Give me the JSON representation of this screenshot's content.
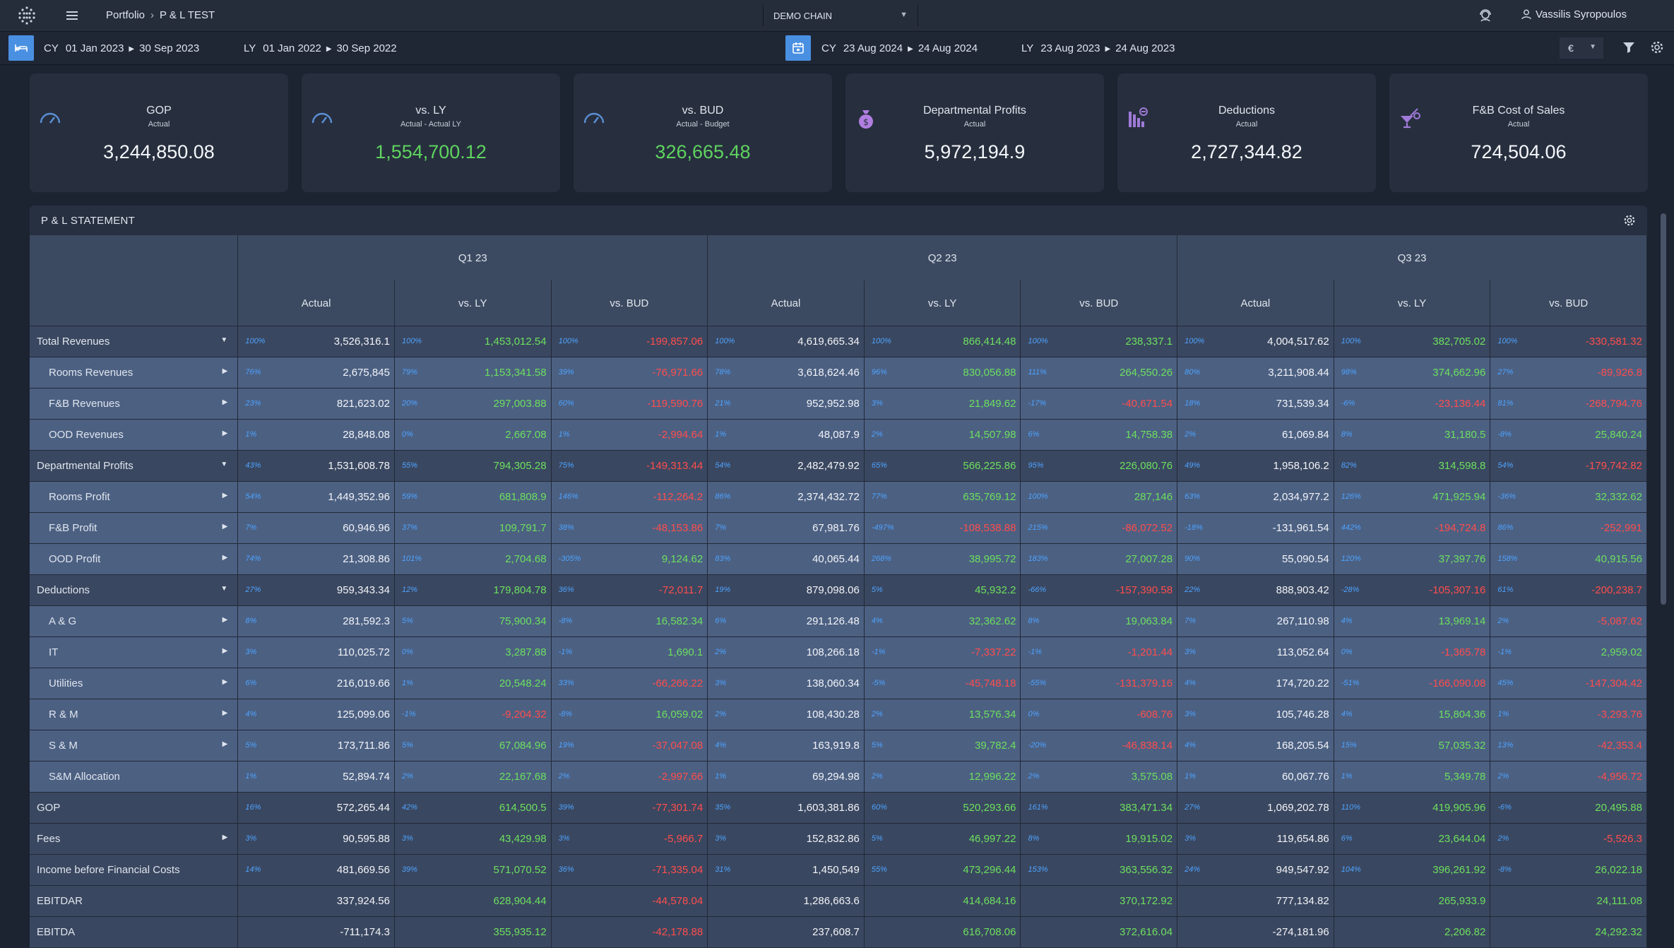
{
  "topbar": {
    "breadcrumb_root": "Portfolio",
    "breadcrumb_current": "P & L TEST",
    "chain": "DEMO CHAIN",
    "user": "Vassilis Syropoulos"
  },
  "datebar": {
    "left": {
      "cy_label": "CY",
      "cy_from": "01 Jan 2023",
      "cy_to": "30 Sep 2023",
      "ly_label": "LY",
      "ly_from": "01 Jan 2022",
      "ly_to": "30 Sep 2022"
    },
    "right": {
      "cy_label": "CY",
      "cy_from": "23 Aug 2024",
      "cy_to": "24 Aug 2024",
      "ly_label": "LY",
      "ly_from": "23 Aug 2023",
      "ly_to": "24 Aug 2023"
    },
    "currency": "€"
  },
  "kpis": [
    {
      "title": "GOP",
      "subtitle": "Actual",
      "value": "3,244,850.08",
      "positive": false,
      "icon": "gauge-icon"
    },
    {
      "title": "vs. LY",
      "subtitle": "Actual - Actual LY",
      "value": "1,554,700.12",
      "positive": true,
      "icon": "gauge-icon"
    },
    {
      "title": "vs. BUD",
      "subtitle": "Actual - Budget",
      "value": "326,665.48",
      "positive": true,
      "icon": "gauge-icon"
    },
    {
      "title": "Departmental Profits",
      "subtitle": "Actual",
      "value": "5,972,194.9",
      "positive": false,
      "icon": "money-bag-icon"
    },
    {
      "title": "Deductions",
      "subtitle": "Actual",
      "value": "2,727,344.82",
      "positive": false,
      "icon": "bar-chart-down-icon"
    },
    {
      "title": "F&B Cost of Sales",
      "subtitle": "Actual",
      "value": "724,504.06",
      "positive": false,
      "icon": "cocktail-icon"
    }
  ],
  "statement": {
    "title": "P & L STATEMENT",
    "quarters": [
      "Q1 23",
      "Q2 23",
      "Q3 23"
    ],
    "columns": [
      "Actual",
      "vs. LY",
      "vs. BUD"
    ],
    "rows": [
      {
        "label": "Total Revenues",
        "type": "main",
        "expander": "▼",
        "cells": [
          [
            "100%",
            "3,526,316.1",
            ""
          ],
          [
            "100%",
            "1,453,012.54",
            "pos"
          ],
          [
            "100%",
            "-199,857.06",
            "neg"
          ],
          [
            "100%",
            "4,619,665.34",
            ""
          ],
          [
            "100%",
            "866,414.48",
            "pos"
          ],
          [
            "100%",
            "238,337.1",
            "pos"
          ],
          [
            "100%",
            "4,004,517.62",
            ""
          ],
          [
            "100%",
            "382,705.02",
            "pos"
          ],
          [
            "100%",
            "-330,581.32",
            "neg"
          ]
        ]
      },
      {
        "label": "Rooms Revenues",
        "type": "sub",
        "expander": "▶",
        "cells": [
          [
            "76%",
            "2,675,845",
            ""
          ],
          [
            "79%",
            "1,153,341.58",
            "pos"
          ],
          [
            "39%",
            "-76,971.66",
            "neg"
          ],
          [
            "78%",
            "3,618,624.46",
            ""
          ],
          [
            "96%",
            "830,056.88",
            "pos"
          ],
          [
            "111%",
            "264,550.26",
            "pos"
          ],
          [
            "80%",
            "3,211,908.44",
            ""
          ],
          [
            "98%",
            "374,662.96",
            "pos"
          ],
          [
            "27%",
            "-89,926.8",
            "neg"
          ]
        ]
      },
      {
        "label": "F&B Revenues",
        "type": "sub",
        "expander": "▶",
        "cells": [
          [
            "23%",
            "821,623.02",
            ""
          ],
          [
            "20%",
            "297,003.88",
            "pos"
          ],
          [
            "60%",
            "-119,590.76",
            "neg"
          ],
          [
            "21%",
            "952,952.98",
            ""
          ],
          [
            "3%",
            "21,849.62",
            "pos"
          ],
          [
            "-17%",
            "-40,671.54",
            "neg"
          ],
          [
            "18%",
            "731,539.34",
            ""
          ],
          [
            "-6%",
            "-23,136.44",
            "neg"
          ],
          [
            "81%",
            "-268,794.76",
            "neg"
          ]
        ]
      },
      {
        "label": "OOD Revenues",
        "type": "sub",
        "expander": "▶",
        "cells": [
          [
            "1%",
            "28,848.08",
            ""
          ],
          [
            "0%",
            "2,667.08",
            "pos"
          ],
          [
            "1%",
            "-2,994.64",
            "neg"
          ],
          [
            "1%",
            "48,087.9",
            ""
          ],
          [
            "2%",
            "14,507.98",
            "pos"
          ],
          [
            "6%",
            "14,758.38",
            "pos"
          ],
          [
            "2%",
            "61,069.84",
            ""
          ],
          [
            "8%",
            "31,180.5",
            "pos"
          ],
          [
            "-8%",
            "25,840.24",
            "pos"
          ]
        ]
      },
      {
        "label": "Departmental Profits",
        "type": "main",
        "expander": "▼",
        "cells": [
          [
            "43%",
            "1,531,608.78",
            ""
          ],
          [
            "55%",
            "794,305.28",
            "pos"
          ],
          [
            "75%",
            "-149,313.44",
            "neg"
          ],
          [
            "54%",
            "2,482,479.92",
            ""
          ],
          [
            "65%",
            "566,225.86",
            "pos"
          ],
          [
            "95%",
            "226,080.76",
            "pos"
          ],
          [
            "49%",
            "1,958,106.2",
            ""
          ],
          [
            "82%",
            "314,598.8",
            "pos"
          ],
          [
            "54%",
            "-179,742.82",
            "neg"
          ]
        ]
      },
      {
        "label": "Rooms Profit",
        "type": "sub",
        "expander": "▶",
        "cells": [
          [
            "54%",
            "1,449,352.96",
            ""
          ],
          [
            "59%",
            "681,808.9",
            "pos"
          ],
          [
            "146%",
            "-112,264.2",
            "neg"
          ],
          [
            "86%",
            "2,374,432.72",
            ""
          ],
          [
            "77%",
            "635,769.12",
            "pos"
          ],
          [
            "100%",
            "287,146",
            "pos"
          ],
          [
            "63%",
            "2,034,977.2",
            ""
          ],
          [
            "126%",
            "471,925.94",
            "pos"
          ],
          [
            "-36%",
            "32,332.62",
            "pos"
          ]
        ]
      },
      {
        "label": "F&B Profit",
        "type": "sub",
        "expander": "▶",
        "cells": [
          [
            "7%",
            "60,946.96",
            ""
          ],
          [
            "37%",
            "109,791.7",
            "pos"
          ],
          [
            "38%",
            "-48,153.86",
            "neg"
          ],
          [
            "7%",
            "67,981.76",
            ""
          ],
          [
            "-497%",
            "-108,538.88",
            "neg"
          ],
          [
            "215%",
            "-86,072.52",
            "neg"
          ],
          [
            "-18%",
            "-131,961.54",
            ""
          ],
          [
            "442%",
            "-194,724.8",
            "neg"
          ],
          [
            "86%",
            "-252,991",
            "neg"
          ]
        ]
      },
      {
        "label": "OOD Profit",
        "type": "sub",
        "expander": "▶",
        "cells": [
          [
            "74%",
            "21,308.86",
            ""
          ],
          [
            "101%",
            "2,704.68",
            "pos"
          ],
          [
            "-305%",
            "9,124.62",
            "pos"
          ],
          [
            "83%",
            "40,065.44",
            ""
          ],
          [
            "268%",
            "38,995.72",
            "pos"
          ],
          [
            "183%",
            "27,007.28",
            "pos"
          ],
          [
            "90%",
            "55,090.54",
            ""
          ],
          [
            "120%",
            "37,397.76",
            "pos"
          ],
          [
            "158%",
            "40,915.56",
            "pos"
          ]
        ]
      },
      {
        "label": "Deductions",
        "type": "main",
        "expander": "▼",
        "cells": [
          [
            "27%",
            "959,343.34",
            ""
          ],
          [
            "12%",
            "179,804.78",
            "pos"
          ],
          [
            "36%",
            "-72,011.7",
            "neg"
          ],
          [
            "19%",
            "879,098.06",
            ""
          ],
          [
            "5%",
            "45,932.2",
            "pos"
          ],
          [
            "-66%",
            "-157,390.58",
            "neg"
          ],
          [
            "22%",
            "888,903.42",
            ""
          ],
          [
            "-28%",
            "-105,307.16",
            "neg"
          ],
          [
            "61%",
            "-200,238.7",
            "neg"
          ]
        ]
      },
      {
        "label": "A & G",
        "type": "sub",
        "expander": "▶",
        "cells": [
          [
            "8%",
            "281,592.3",
            ""
          ],
          [
            "5%",
            "75,900.34",
            "pos"
          ],
          [
            "-8%",
            "16,582.34",
            "pos"
          ],
          [
            "6%",
            "291,126.48",
            ""
          ],
          [
            "4%",
            "32,362.62",
            "pos"
          ],
          [
            "8%",
            "19,063.84",
            "pos"
          ],
          [
            "7%",
            "267,110.98",
            ""
          ],
          [
            "4%",
            "13,969.14",
            "pos"
          ],
          [
            "2%",
            "-5,087.62",
            "neg"
          ]
        ]
      },
      {
        "label": "IT",
        "type": "sub",
        "expander": "▶",
        "cells": [
          [
            "3%",
            "110,025.72",
            ""
          ],
          [
            "0%",
            "3,287.88",
            "pos"
          ],
          [
            "-1%",
            "1,690.1",
            "pos"
          ],
          [
            "2%",
            "108,266.18",
            ""
          ],
          [
            "-1%",
            "-7,337.22",
            "neg"
          ],
          [
            "-1%",
            "-1,201.44",
            "neg"
          ],
          [
            "3%",
            "113,052.64",
            ""
          ],
          [
            "0%",
            "-1,365.78",
            "neg"
          ],
          [
            "-1%",
            "2,959.02",
            "pos"
          ]
        ]
      },
      {
        "label": "Utilities",
        "type": "sub",
        "expander": "▶",
        "cells": [
          [
            "6%",
            "216,019.66",
            ""
          ],
          [
            "1%",
            "20,548.24",
            "pos"
          ],
          [
            "33%",
            "-66,266.22",
            "neg"
          ],
          [
            "3%",
            "138,060.34",
            ""
          ],
          [
            "-5%",
            "-45,748.18",
            "neg"
          ],
          [
            "-55%",
            "-131,379.16",
            "neg"
          ],
          [
            "4%",
            "174,720.22",
            ""
          ],
          [
            "-51%",
            "-166,090.08",
            "neg"
          ],
          [
            "45%",
            "-147,304.42",
            "neg"
          ]
        ]
      },
      {
        "label": "R & M",
        "type": "sub",
        "expander": "▶",
        "cells": [
          [
            "4%",
            "125,099.06",
            ""
          ],
          [
            "-1%",
            "-9,204.32",
            "neg"
          ],
          [
            "-8%",
            "16,059.02",
            "pos"
          ],
          [
            "2%",
            "108,430.28",
            ""
          ],
          [
            "2%",
            "13,576.34",
            "pos"
          ],
          [
            "0%",
            "-608.76",
            "neg"
          ],
          [
            "3%",
            "105,746.28",
            ""
          ],
          [
            "4%",
            "15,804.36",
            "pos"
          ],
          [
            "1%",
            "-3,293.76",
            "neg"
          ]
        ]
      },
      {
        "label": "S & M",
        "type": "sub",
        "expander": "▶",
        "cells": [
          [
            "5%",
            "173,711.86",
            ""
          ],
          [
            "5%",
            "67,084.96",
            "pos"
          ],
          [
            "19%",
            "-37,047.08",
            "neg"
          ],
          [
            "4%",
            "163,919.8",
            ""
          ],
          [
            "5%",
            "39,782.4",
            "pos"
          ],
          [
            "-20%",
            "-46,838.14",
            "neg"
          ],
          [
            "4%",
            "168,205.54",
            ""
          ],
          [
            "15%",
            "57,035.32",
            "pos"
          ],
          [
            "13%",
            "-42,353.4",
            "neg"
          ]
        ]
      },
      {
        "label": "S&M Allocation",
        "type": "sub",
        "expander": "",
        "cells": [
          [
            "1%",
            "52,894.74",
            ""
          ],
          [
            "2%",
            "22,167.68",
            "pos"
          ],
          [
            "2%",
            "-2,997.66",
            "neg"
          ],
          [
            "1%",
            "69,294.98",
            ""
          ],
          [
            "2%",
            "12,996.22",
            "pos"
          ],
          [
            "2%",
            "3,575.08",
            "pos"
          ],
          [
            "1%",
            "60,067.76",
            ""
          ],
          [
            "1%",
            "5,349.78",
            "pos"
          ],
          [
            "2%",
            "-4,956.72",
            "neg"
          ]
        ]
      },
      {
        "label": "GOP",
        "type": "plain",
        "expander": "",
        "cells": [
          [
            "16%",
            "572,265.44",
            ""
          ],
          [
            "42%",
            "614,500.5",
            "pos"
          ],
          [
            "39%",
            "-77,301.74",
            "neg"
          ],
          [
            "35%",
            "1,603,381.86",
            ""
          ],
          [
            "60%",
            "520,293.66",
            "pos"
          ],
          [
            "161%",
            "383,471.34",
            "pos"
          ],
          [
            "27%",
            "1,069,202.78",
            ""
          ],
          [
            "110%",
            "419,905.96",
            "pos"
          ],
          [
            "-6%",
            "20,495.88",
            "pos"
          ]
        ]
      },
      {
        "label": "Fees",
        "type": "plain",
        "expander": "▶",
        "cells": [
          [
            "3%",
            "90,595.88",
            ""
          ],
          [
            "3%",
            "43,429.98",
            "pos"
          ],
          [
            "3%",
            "-5,966.7",
            "neg"
          ],
          [
            "3%",
            "152,832.86",
            ""
          ],
          [
            "5%",
            "46,997.22",
            "pos"
          ],
          [
            "8%",
            "19,915.02",
            "pos"
          ],
          [
            "3%",
            "119,654.86",
            ""
          ],
          [
            "6%",
            "23,644.04",
            "pos"
          ],
          [
            "2%",
            "-5,526.3",
            "neg"
          ]
        ]
      },
      {
        "label": "Income before Financial Costs",
        "type": "plain",
        "expander": "",
        "cells": [
          [
            "14%",
            "481,669.56",
            ""
          ],
          [
            "39%",
            "571,070.52",
            "pos"
          ],
          [
            "36%",
            "-71,335.04",
            "neg"
          ],
          [
            "31%",
            "1,450,549",
            ""
          ],
          [
            "55%",
            "473,296.44",
            "pos"
          ],
          [
            "153%",
            "363,556.32",
            "pos"
          ],
          [
            "24%",
            "949,547.92",
            ""
          ],
          [
            "104%",
            "396,261.92",
            "pos"
          ],
          [
            "-8%",
            "26,022.18",
            "pos"
          ]
        ]
      },
      {
        "label": "EBITDAR",
        "type": "plain",
        "expander": "",
        "cells": [
          [
            "",
            "337,924.56",
            ""
          ],
          [
            "",
            "628,904.44",
            "pos"
          ],
          [
            "",
            "-44,578.04",
            "neg"
          ],
          [
            "",
            "1,286,663.6",
            ""
          ],
          [
            "",
            "414,684.16",
            "pos"
          ],
          [
            "",
            "370,172.92",
            "pos"
          ],
          [
            "",
            "777,134.82",
            ""
          ],
          [
            "",
            "265,933.9",
            "pos"
          ],
          [
            "",
            "24,111.08",
            "pos"
          ]
        ]
      },
      {
        "label": "EBITDA",
        "type": "plain",
        "expander": "",
        "cells": [
          [
            "",
            "-711,174.3",
            ""
          ],
          [
            "",
            "355,935.12",
            "pos"
          ],
          [
            "",
            "-42,178.88",
            "neg"
          ],
          [
            "",
            "237,608.7",
            ""
          ],
          [
            "",
            "616,708.06",
            "pos"
          ],
          [
            "",
            "372,616.04",
            "pos"
          ],
          [
            "",
            "-274,181.96",
            ""
          ],
          [
            "",
            "2,206.82",
            "pos"
          ],
          [
            "",
            "24,292.32",
            "pos"
          ]
        ]
      }
    ]
  }
}
